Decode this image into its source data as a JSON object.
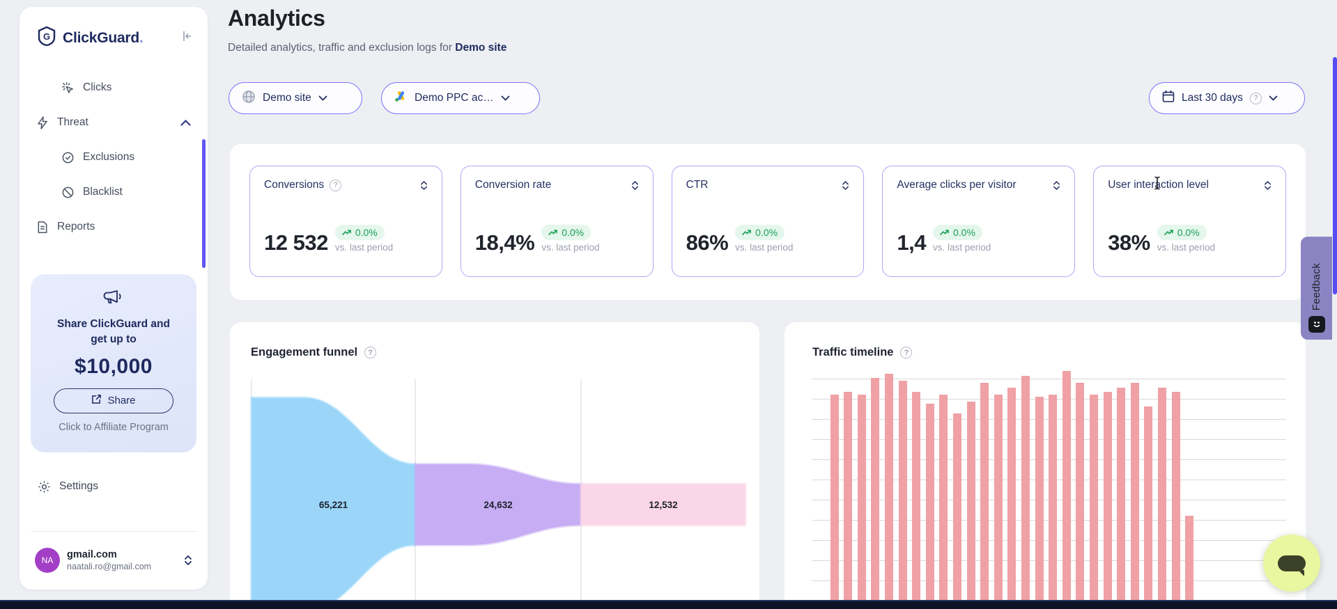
{
  "app": {
    "brand": "ClickGuard",
    "brand_dot": "."
  },
  "sidebar": {
    "nav": [
      {
        "label": "Clicks"
      },
      {
        "label": "Threat"
      },
      {
        "label": "Exclusions"
      },
      {
        "label": "Blacklist"
      },
      {
        "label": "Reports"
      }
    ],
    "promo": {
      "line1": "Share ClickGuard and",
      "line2": "get up to",
      "amount": "$10,000",
      "share_label": "Share",
      "caption": "Click to Affiliate Program"
    },
    "settings_label": "Settings",
    "account": {
      "initials": "NA",
      "name": "gmail.com",
      "email": "naatali.ro@gmail.com"
    }
  },
  "header": {
    "title": "Analytics",
    "subtitle_prefix": "Detailed analytics, traffic and exclusion logs for ",
    "subtitle_target": "Demo site"
  },
  "filters": {
    "site": "Demo site",
    "ppc_account": "Demo PPC ac…",
    "date_range": "Last 30 days"
  },
  "kpis": [
    {
      "label": "Conversions",
      "value": "12 532",
      "delta": "0.0%",
      "compare": "vs. last period"
    },
    {
      "label": "Conversion rate",
      "value": "18,4%",
      "delta": "0.0%",
      "compare": "vs. last period"
    },
    {
      "label": "CTR",
      "value": "86%",
      "delta": "0.0%",
      "compare": "vs. last period"
    },
    {
      "label": "Average clicks per visitor",
      "value": "1,4",
      "delta": "0.0%",
      "compare": "vs. last period"
    },
    {
      "label": "User interaction level",
      "value": "38%",
      "delta": "0.0%",
      "compare": "vs. last period"
    }
  ],
  "feedback_label": "Feedback",
  "chart_data": [
    {
      "type": "funnel",
      "title": "Engagement funnel",
      "stages": [
        {
          "label": "65,221",
          "value": 65221,
          "color": "#9bd6f9"
        },
        {
          "label": "24,632",
          "value": 24632,
          "color": "#c6adf4"
        },
        {
          "label": "12,532",
          "value": 12532,
          "color": "#fbd6e9"
        }
      ],
      "legend_position": "none",
      "note": "horizontal funnel, stage bands centered vertically, gray separators between stages, bottom cropped by viewport"
    },
    {
      "type": "bar",
      "title": "Traffic timeline",
      "x": "time (daily, labels below fold / cropped)",
      "ylabel": "",
      "values_percent_of_plot": [
        3,
        92,
        93,
        92,
        99,
        101,
        98,
        93,
        88,
        92,
        84,
        89,
        97,
        92,
        95,
        100,
        91,
        92,
        102,
        97,
        92,
        93,
        95,
        97,
        87,
        95,
        93,
        40
      ],
      "bar_color": "#efa1a6",
      "grid": true,
      "gridline_count": 12,
      "note": "y-axis unlabeled and bottom of chart cropped by viewport; last bar much shorter (partial period)"
    }
  ],
  "colors": {
    "accent_indigo": "#5b50f3",
    "pill_border": "#7f75f6",
    "kpi_border": "#ada6f8",
    "positive_green": "#1aa157",
    "badge_bg": "#e5f6ec",
    "navy_text": "#1e2a5e",
    "funnel_blue": "#9bd6f9",
    "funnel_purple": "#c6adf4",
    "funnel_pink": "#fbd6e9",
    "traffic_bar": "#efa1a6",
    "feedback_tab": "#8b84c2",
    "chat_button": "#e9f7a1",
    "avatar_purple": "#a23fc6",
    "page_bg": "#edeff3"
  }
}
